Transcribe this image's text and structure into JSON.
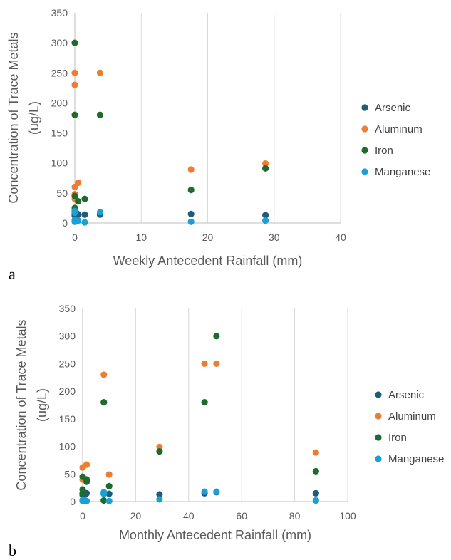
{
  "colors": {
    "Arsenic": "#1f5b7a",
    "Aluminum": "#ed7d31",
    "Iron": "#1e6b2b",
    "Manganese": "#1aa0d6"
  },
  "chart_data": [
    {
      "type": "scatter",
      "panel_label": "a",
      "xlabel": "Weekly Antecedent Rainfall (mm)",
      "ylabel_lines": [
        "Concentration of Trace Metals",
        "(ug/L)"
      ],
      "xlim": [
        0,
        40
      ],
      "ylim": [
        0,
        350
      ],
      "xticks": [
        0,
        10,
        20,
        30,
        40
      ],
      "yticks": [
        0,
        50,
        100,
        150,
        200,
        250,
        300,
        350
      ],
      "grid": "vertical",
      "legend_position": "right",
      "series": [
        {
          "name": "Arsenic",
          "points": [
            [
              0,
              15
            ],
            [
              0,
              14
            ],
            [
              0,
              13
            ],
            [
              0,
              12
            ],
            [
              0.3,
              16
            ],
            [
              0.5,
              14
            ],
            [
              1.5,
              14
            ],
            [
              3.8,
              14
            ],
            [
              17.5,
              15
            ],
            [
              28.7,
              13
            ]
          ]
        },
        {
          "name": "Aluminum",
          "points": [
            [
              0,
              250
            ],
            [
              0,
              230
            ],
            [
              0,
              60
            ],
            [
              0,
              48
            ],
            [
              0,
              40
            ],
            [
              0.5,
              67
            ],
            [
              3.8,
              250
            ],
            [
              17.5,
              89
            ],
            [
              28.7,
              99
            ]
          ]
        },
        {
          "name": "Iron",
          "points": [
            [
              0,
              300
            ],
            [
              0,
              180
            ],
            [
              0,
              45
            ],
            [
              0,
              25
            ],
            [
              0,
              20
            ],
            [
              0.5,
              36
            ],
            [
              1.5,
              40
            ],
            [
              3.8,
              180
            ],
            [
              17.5,
              55
            ],
            [
              28.7,
              91
            ]
          ]
        },
        {
          "name": "Manganese",
          "points": [
            [
              0,
              20
            ],
            [
              0,
              17
            ],
            [
              0,
              5
            ],
            [
              0,
              2
            ],
            [
              0.3,
              3
            ],
            [
              0.5,
              4
            ],
            [
              1.5,
              1
            ],
            [
              3.8,
              18
            ],
            [
              17.5,
              2
            ],
            [
              28.7,
              4
            ]
          ]
        }
      ]
    },
    {
      "type": "scatter",
      "panel_label": "b",
      "xlabel": "Monthly Antecedent Rainfall (mm)",
      "ylabel_lines": [
        "Concentration of Trace Metals",
        "(ug/L)"
      ],
      "xlim": [
        0,
        100
      ],
      "ylim": [
        0,
        350
      ],
      "xticks": [
        0,
        20,
        40,
        60,
        80,
        100
      ],
      "yticks": [
        0,
        50,
        100,
        150,
        200,
        250,
        300,
        350
      ],
      "grid": "vertical",
      "legend_position": "right",
      "series": [
        {
          "name": "Arsenic",
          "points": [
            [
              0,
              15
            ],
            [
              0,
              12
            ],
            [
              1,
              13
            ],
            [
              1.5,
              15
            ],
            [
              8,
              14
            ],
            [
              10,
              14
            ],
            [
              29,
              13
            ],
            [
              46,
              15
            ],
            [
              50.5,
              17
            ],
            [
              88,
              15
            ]
          ]
        },
        {
          "name": "Aluminum",
          "points": [
            [
              0,
              62
            ],
            [
              0,
              40
            ],
            [
              1.5,
              67
            ],
            [
              8,
              230
            ],
            [
              10,
              49
            ],
            [
              29,
              99
            ],
            [
              46,
              250
            ],
            [
              50.5,
              250
            ],
            [
              88,
              89
            ]
          ]
        },
        {
          "name": "Iron",
          "points": [
            [
              0,
              45
            ],
            [
              0,
              22
            ],
            [
              0,
              15
            ],
            [
              1.5,
              40
            ],
            [
              1.5,
              36
            ],
            [
              8,
              180
            ],
            [
              8,
              2
            ],
            [
              10,
              28
            ],
            [
              29,
              91
            ],
            [
              46,
              180
            ],
            [
              50.5,
              300
            ],
            [
              88,
              55
            ]
          ]
        },
        {
          "name": "Manganese",
          "points": [
            [
              0,
              3
            ],
            [
              0,
              1
            ],
            [
              1,
              2
            ],
            [
              1.5,
              1
            ],
            [
              8,
              17
            ],
            [
              8,
              14
            ],
            [
              10,
              1
            ],
            [
              29,
              4
            ],
            [
              46,
              18
            ],
            [
              50.5,
              18
            ],
            [
              88,
              2
            ]
          ]
        }
      ]
    }
  ]
}
